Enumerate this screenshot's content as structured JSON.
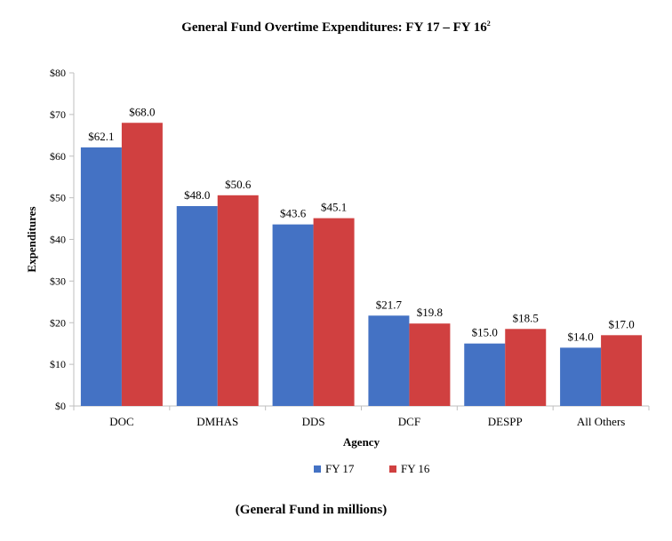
{
  "chart_data": {
    "type": "bar",
    "title": "General Fund Overtime Expenditures: FY 17 – FY 16",
    "title_superscript": "2",
    "xlabel": "Agency",
    "ylabel": "Expenditures",
    "ylim": [
      0,
      80
    ],
    "y_ticks": [
      "$0",
      "$10",
      "$20",
      "$30",
      "$40",
      "$50",
      "$60",
      "$70",
      "$80"
    ],
    "y_tick_values": [
      0,
      10,
      20,
      30,
      40,
      50,
      60,
      70,
      80
    ],
    "categories": [
      "DOC",
      "DMHAS",
      "DDS",
      "DCF",
      "DESPP",
      "All Others"
    ],
    "series": [
      {
        "name": "FY 17",
        "color": "#4472C4",
        "values": [
          62.1,
          48.0,
          43.6,
          21.7,
          15.0,
          14.0
        ],
        "labels": [
          "$62.1",
          "$48.0",
          "$43.6",
          "$21.7",
          "$15.0",
          "$14.0"
        ]
      },
      {
        "name": "FY 16",
        "color": "#D04040",
        "values": [
          68.0,
          50.6,
          45.1,
          19.8,
          18.5,
          17.0
        ],
        "labels": [
          "$68.0",
          "$50.6",
          "$45.1",
          "$19.8",
          "$18.5",
          "$17.0"
        ]
      }
    ],
    "grid": false,
    "legend": "bottom-center"
  },
  "footnote": "(General Fund in millions)"
}
